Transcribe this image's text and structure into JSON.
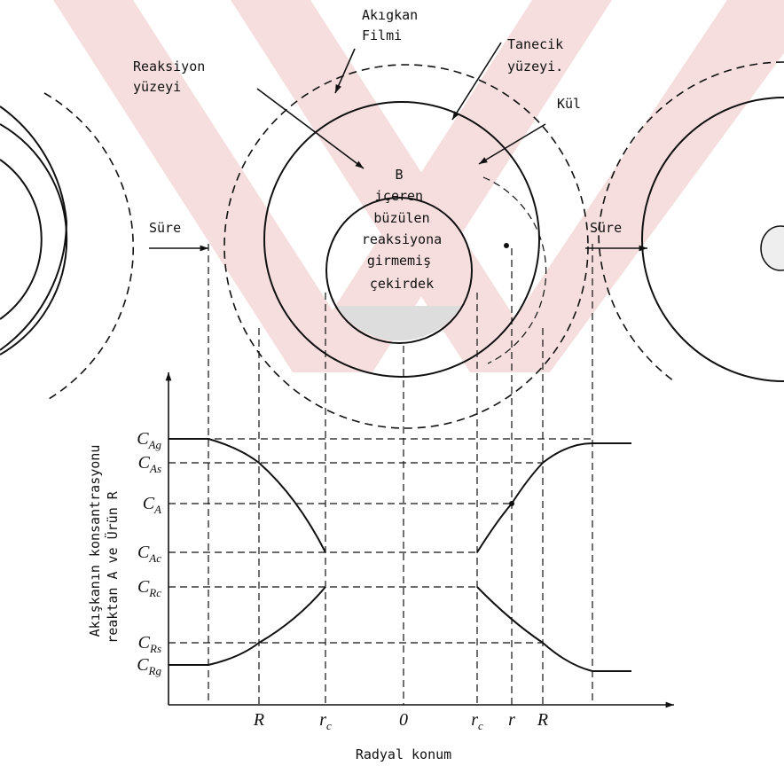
{
  "labels": {
    "film": [
      "Akıgkan",
      "Filmi"
    ],
    "reaction_surface": [
      "Reaksiyon",
      "yüzeyi"
    ],
    "particle_surface": [
      "Tanecik",
      "yüzeyi."
    ],
    "ash": "Kül",
    "core": [
      "B",
      "içeren",
      "büzülen",
      "reaksiyona",
      "girmemiş",
      "çekirdek"
    ],
    "time_left": "Süre",
    "time_right": "Süre"
  },
  "graph": {
    "y_axis_title": [
      "Akışkanın konsantrasyonu",
      "reaktan A ve Ürün R"
    ],
    "x_axis_title": "Radyal konum",
    "y_labels": [
      {
        "symbol": "C",
        "subscript": "Ag"
      },
      {
        "symbol": "C",
        "subscript": "As"
      },
      {
        "symbol": "C",
        "subscript": "A"
      },
      {
        "symbol": "C",
        "subscript": "Ac"
      },
      {
        "symbol": "C",
        "subscript": "Rc"
      },
      {
        "symbol": "C",
        "subscript": "Rs"
      },
      {
        "symbol": "C",
        "subscript": "Rg"
      }
    ],
    "x_labels": [
      {
        "symbol": "R",
        "subscript": ""
      },
      {
        "symbol": "r",
        "subscript": "c"
      },
      {
        "symbol": "0",
        "subscript": ""
      },
      {
        "symbol": "r",
        "subscript": "c"
      },
      {
        "symbol": "r",
        "subscript": ""
      },
      {
        "symbol": "R",
        "subscript": ""
      }
    ]
  }
}
